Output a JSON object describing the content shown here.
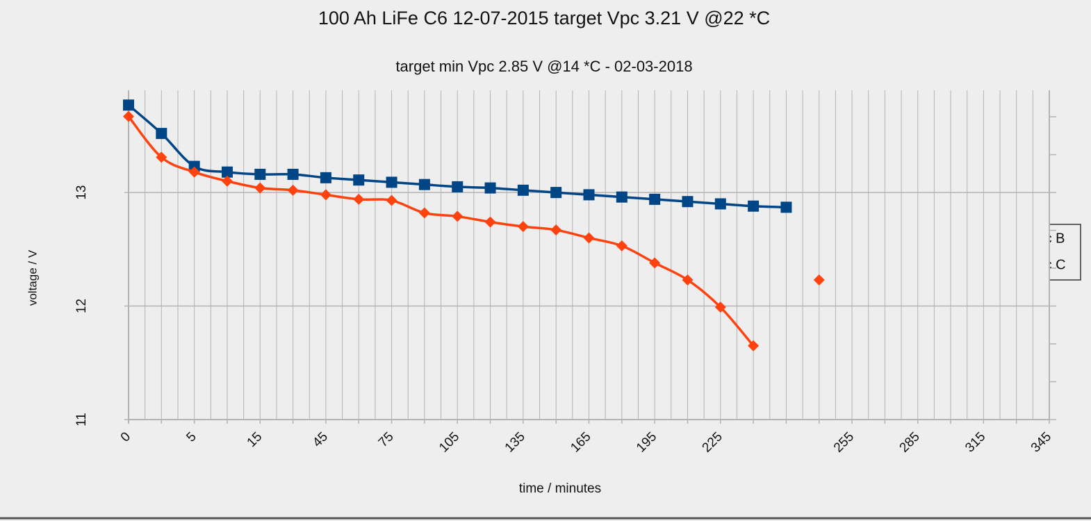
{
  "chart_data": {
    "type": "line",
    "title": "100 Ah LiFe C6 12-07-2015 target Vpc 3.21 V @22 *C",
    "subtitle": "target min Vpc 2.85 V @14 *C - 02-03-2018",
    "x_label": "time / minutes",
    "y_label": "voltage / V",
    "categories": [
      "0",
      null,
      "5",
      null,
      "15",
      null,
      "45",
      null,
      "75",
      null,
      "105",
      null,
      "135",
      null,
      "165",
      null,
      "195",
      null,
      "225",
      null,
      null,
      null,
      "255",
      null,
      "285",
      null,
      "315",
      null,
      "345"
    ],
    "series": [
      {
        "name": "Stĺpec B",
        "color": "#004586",
        "marker": "square",
        "values": [
          13.77,
          13.52,
          13.23,
          13.18,
          13.16,
          13.16,
          13.13,
          13.11,
          13.09,
          13.07,
          13.05,
          13.04,
          13.02,
          13.0,
          12.98,
          12.96,
          12.94,
          12.92,
          12.9,
          12.88,
          12.87,
          null,
          null,
          null,
          null,
          null,
          null,
          null,
          null
        ]
      },
      {
        "name": "Stĺpec C",
        "color": "#ff420e",
        "marker": "diamond",
        "values": [
          13.67,
          13.31,
          13.18,
          13.1,
          13.04,
          13.02,
          12.98,
          12.94,
          12.93,
          12.82,
          12.79,
          12.74,
          12.7,
          12.67,
          12.6,
          12.53,
          12.38,
          12.23,
          11.99,
          11.65,
          null,
          12.23,
          null,
          null,
          null,
          null,
          null,
          null,
          null
        ]
      }
    ],
    "ylim": [
      11,
      13.9
    ],
    "yticks": [
      11,
      12,
      13
    ],
    "grid": true,
    "legend": "right"
  }
}
